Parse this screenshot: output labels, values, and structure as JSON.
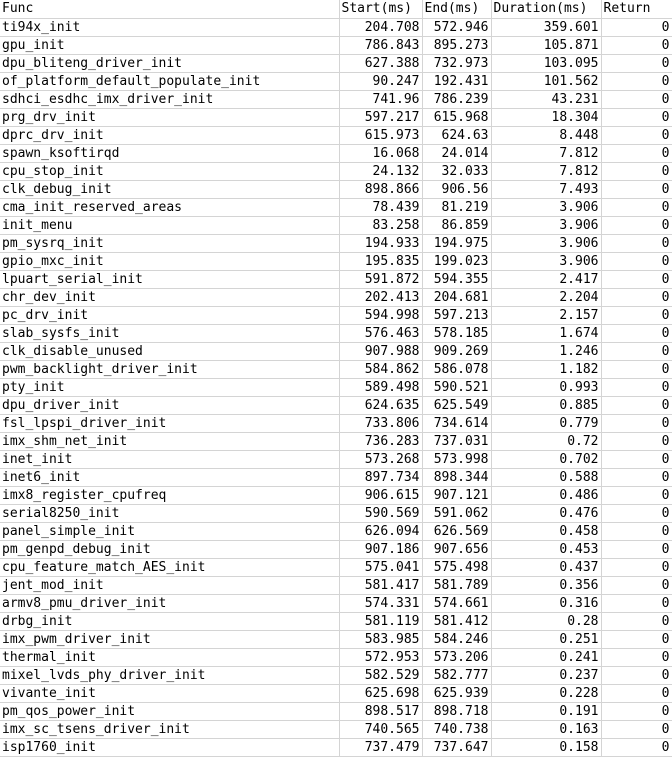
{
  "headers": [
    "Func",
    "Start(ms)",
    "End(ms)",
    "Duration(ms)",
    "Return"
  ],
  "rows": [
    [
      "ti94x_init",
      "204.708",
      "572.946",
      "359.601",
      "0"
    ],
    [
      "gpu_init",
      "786.843",
      "895.273",
      "105.871",
      "0"
    ],
    [
      "dpu_bliteng_driver_init",
      "627.388",
      "732.973",
      "103.095",
      "0"
    ],
    [
      "of_platform_default_populate_init",
      "90.247",
      "192.431",
      "101.562",
      "0"
    ],
    [
      "sdhci_esdhc_imx_driver_init",
      "741.96",
      "786.239",
      "43.231",
      "0"
    ],
    [
      "prg_drv_init",
      "597.217",
      "615.968",
      "18.304",
      "0"
    ],
    [
      "dprc_drv_init",
      "615.973",
      "624.63",
      "8.448",
      "0"
    ],
    [
      "spawn_ksoftirqd",
      "16.068",
      "24.014",
      "7.812",
      "0"
    ],
    [
      "cpu_stop_init",
      "24.132",
      "32.033",
      "7.812",
      "0"
    ],
    [
      "clk_debug_init",
      "898.866",
      "906.56",
      "7.493",
      "0"
    ],
    [
      "cma_init_reserved_areas",
      "78.439",
      "81.219",
      "3.906",
      "0"
    ],
    [
      "init_menu",
      "83.258",
      "86.859",
      "3.906",
      "0"
    ],
    [
      "pm_sysrq_init",
      "194.933",
      "194.975",
      "3.906",
      "0"
    ],
    [
      "gpio_mxc_init",
      "195.835",
      "199.023",
      "3.906",
      "0"
    ],
    [
      "lpuart_serial_init",
      "591.872",
      "594.355",
      "2.417",
      "0"
    ],
    [
      "chr_dev_init",
      "202.413",
      "204.681",
      "2.204",
      "0"
    ],
    [
      "pc_drv_init",
      "594.998",
      "597.213",
      "2.157",
      "0"
    ],
    [
      "slab_sysfs_init",
      "576.463",
      "578.185",
      "1.674",
      "0"
    ],
    [
      "clk_disable_unused",
      "907.988",
      "909.269",
      "1.246",
      "0"
    ],
    [
      "pwm_backlight_driver_init",
      "584.862",
      "586.078",
      "1.182",
      "0"
    ],
    [
      "pty_init",
      "589.498",
      "590.521",
      "0.993",
      "0"
    ],
    [
      "dpu_driver_init",
      "624.635",
      "625.549",
      "0.885",
      "0"
    ],
    [
      "fsl_lpspi_driver_init",
      "733.806",
      "734.614",
      "0.779",
      "0"
    ],
    [
      "imx_shm_net_init",
      "736.283",
      "737.031",
      "0.72",
      "0"
    ],
    [
      "inet_init",
      "573.268",
      "573.998",
      "0.702",
      "0"
    ],
    [
      "inet6_init",
      "897.734",
      "898.344",
      "0.588",
      "0"
    ],
    [
      "imx8_register_cpufreq",
      "906.615",
      "907.121",
      "0.486",
      "0"
    ],
    [
      "serial8250_init",
      "590.569",
      "591.062",
      "0.476",
      "0"
    ],
    [
      "panel_simple_init",
      "626.094",
      "626.569",
      "0.458",
      "0"
    ],
    [
      "pm_genpd_debug_init",
      "907.186",
      "907.656",
      "0.453",
      "0"
    ],
    [
      "cpu_feature_match_AES_init",
      "575.041",
      "575.498",
      "0.437",
      "0"
    ],
    [
      "jent_mod_init",
      "581.417",
      "581.789",
      "0.356",
      "0"
    ],
    [
      "armv8_pmu_driver_init",
      "574.331",
      "574.661",
      "0.316",
      "0"
    ],
    [
      "drbg_init",
      "581.119",
      "581.412",
      "0.28",
      "0"
    ],
    [
      "imx_pwm_driver_init",
      "583.985",
      "584.246",
      "0.251",
      "0"
    ],
    [
      "thermal_init",
      "572.953",
      "573.206",
      "0.241",
      "0"
    ],
    [
      "mixel_lvds_phy_driver_init",
      "582.529",
      "582.777",
      "0.237",
      "0"
    ],
    [
      "vivante_init",
      "625.698",
      "625.939",
      "0.228",
      "0"
    ],
    [
      "pm_qos_power_init",
      "898.517",
      "898.718",
      "0.191",
      "0"
    ],
    [
      "imx_sc_tsens_driver_init",
      "740.565",
      "740.738",
      "0.163",
      "0"
    ],
    [
      "isp1760_init",
      "737.479",
      "737.647",
      "0.158",
      "0"
    ]
  ],
  "colors": {
    "grid": "#d4d4d4",
    "text": "#000000",
    "background": "#ffffff"
  }
}
